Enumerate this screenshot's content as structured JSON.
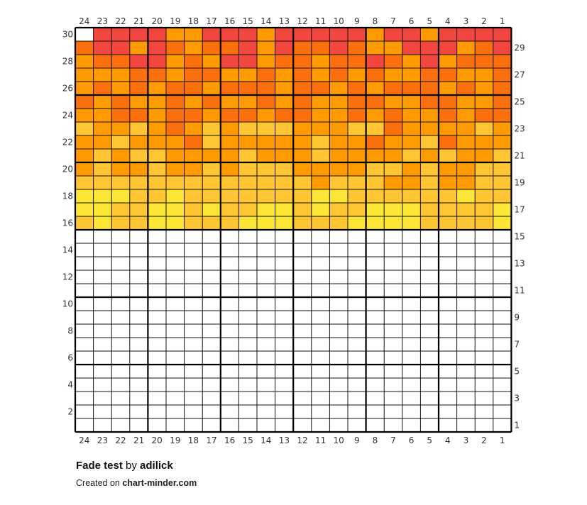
{
  "chart": {
    "columns": 24,
    "rows": 30,
    "major_every": 4,
    "major_every_rows": 5,
    "colors": {
      "R": "#f2463f",
      "O": "#fb6f0c",
      "A": "#ff9a00",
      "L": "#ffc532",
      "Y": "#fbe635",
      "P": "#ffd35a",
      "W": "#ffffff"
    },
    "grid_rows": [
      "WRRRRAARRRARRRRRARRARRRR",
      "ORRAROAOORAROOROAARRRAOR",
      "AOORRAOARRAOOAOOROARAOOO",
      "AAAOOAOOAAOAOAOAOAAOOAAO",
      "AOAOAOOAOOOAOOAOAOOOAOAO",
      "OAOAAOAOAAOAOAAOOAAOOAAO",
      "AAOOAOOAOOAOOAAOAOAAOAOO",
      "LAALAOALALLLAAALLOAAAALA",
      "AALAAAOLAAAAALAAOAALOAAA",
      "ALALLAAAALAAALAAAALALAAL",
      "ALAALAALALLLAAAALLALAALL",
      "LLLLLLLLLLLLLALLLAALAALL",
      "YYYLLYLLLLLLLYYLLLLLLYLL",
      "YYLLYYLYLLYYLYLLYYYLLLLY",
      "LYLLYYLLLYYYLLLYYYYLLLLY"
    ],
    "blank_rows": 15
  },
  "col_labels_top": [
    "1",
    "2",
    "3",
    "4",
    "5",
    "6",
    "7",
    "8",
    "9",
    "10",
    "11",
    "12",
    "13",
    "14",
    "15",
    "16",
    "17",
    "18",
    "19",
    "20",
    "21",
    "22",
    "23",
    "24"
  ],
  "col_labels_bottom": [
    "1",
    "2",
    "3",
    "4",
    "5",
    "6",
    "7",
    "8",
    "9",
    "10",
    "11",
    "12",
    "13",
    "14",
    "15",
    "16",
    "17",
    "18",
    "19",
    "20",
    "21",
    "22",
    "23",
    "24"
  ],
  "row_labels_left": [
    "2",
    "4",
    "6",
    "8",
    "10",
    "12",
    "14",
    "16",
    "18",
    "20",
    "22",
    "24",
    "26",
    "28",
    "30"
  ],
  "row_labels_right": [
    "1",
    "3",
    "5",
    "7",
    "9",
    "11",
    "13",
    "15",
    "17",
    "19",
    "21",
    "23",
    "25",
    "27",
    "29"
  ],
  "footer": {
    "title": "Fade test",
    "by": "by",
    "author": "adilick",
    "created_on": "Created on",
    "site": "chart-minder.com"
  }
}
